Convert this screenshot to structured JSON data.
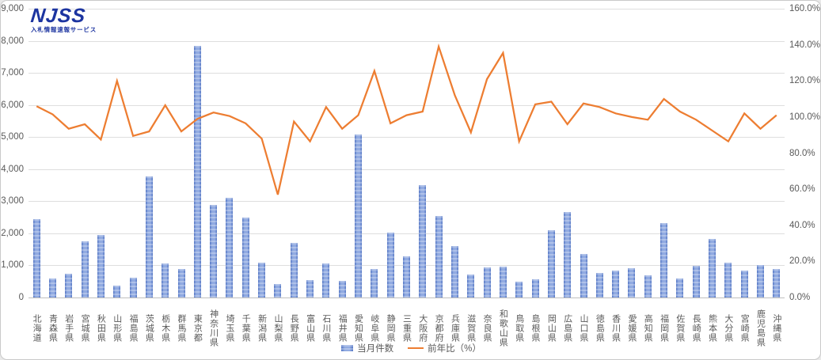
{
  "logo": {
    "text": "NJSS",
    "subtitle": "入札情報速報サービス"
  },
  "legend": {
    "bar_label": "当月件数",
    "line_label": "前年比（%）"
  },
  "colors": {
    "bar_fill": "#7f9bda",
    "bar_edge": "#5577c5",
    "line": "#ED7D31",
    "grid": "#dedede",
    "axis_text": "#595959",
    "logo_blue": "#1c34a0"
  },
  "chart_data": {
    "type": "bar+line combo",
    "title": "",
    "xlabel": "",
    "ylabel_left": "当月件数",
    "ylabel_right": "前年比（%）",
    "grid": true,
    "legend_position": "bottom",
    "left_axis": {
      "min": 0,
      "max": 9000,
      "step": 1000,
      "ticks": [
        "9,000",
        "8,000",
        "7,000",
        "6,000",
        "5,000",
        "4,000",
        "3,000",
        "2,000",
        "1,000",
        "0"
      ]
    },
    "right_axis": {
      "min": 0,
      "max": 160,
      "step": 20,
      "unit": "%",
      "ticks": [
        "160.0%",
        "140.0%",
        "120.0%",
        "100.0%",
        "80.0%",
        "60.0%",
        "40.0%",
        "20.0%",
        "0.0%"
      ]
    },
    "categories": [
      "北海道",
      "青森県",
      "岩手県",
      "宮城県",
      "秋田県",
      "山形県",
      "福島県",
      "茨城県",
      "栃木県",
      "群馬県",
      "東京都",
      "神奈川県",
      "埼玉県",
      "千葉県",
      "新潟県",
      "山梨県",
      "長野県",
      "富山県",
      "石川県",
      "福井県",
      "愛知県",
      "岐阜県",
      "静岡県",
      "三重県",
      "大阪府",
      "京都府",
      "兵庫県",
      "滋賀県",
      "奈良県",
      "和歌山県",
      "鳥取県",
      "島根県",
      "岡山県",
      "広島県",
      "山口県",
      "徳島県",
      "香川県",
      "愛媛県",
      "高知県",
      "福岡県",
      "佐賀県",
      "長崎県",
      "熊本県",
      "大分県",
      "宮崎県",
      "鹿児島県",
      "沖縄県"
    ],
    "series": [
      {
        "name": "当月件数",
        "type": "bar",
        "axis": "left",
        "values": [
          2430,
          600,
          750,
          1740,
          1950,
          380,
          620,
          3780,
          1060,
          890,
          7840,
          2880,
          3110,
          2480,
          1080,
          420,
          1700,
          550,
          1060,
          520,
          5080,
          900,
          2030,
          1290,
          3490,
          2550,
          1600,
          710,
          930,
          960,
          500,
          560,
          2090,
          2660,
          1360,
          760,
          850,
          920,
          700,
          2310,
          600,
          980,
          1820,
          1080,
          850,
          1020,
          890
        ]
      },
      {
        "name": "前年比（%）",
        "type": "line",
        "axis": "right",
        "values": [
          106,
          101.5,
          93.5,
          96,
          87.5,
          120,
          89.5,
          92,
          106.5,
          92,
          99,
          102.5,
          100.5,
          96.5,
          88,
          57,
          97.5,
          86.5,
          105.5,
          93.5,
          101,
          125.5,
          96.5,
          101,
          103,
          139,
          112,
          91.5,
          121,
          135.5,
          86.5,
          107,
          108.5,
          96,
          107.5,
          105.5,
          102,
          100,
          98.5,
          110,
          103,
          98.5,
          92.5,
          86.5,
          102,
          93.5,
          101
        ]
      }
    ]
  }
}
